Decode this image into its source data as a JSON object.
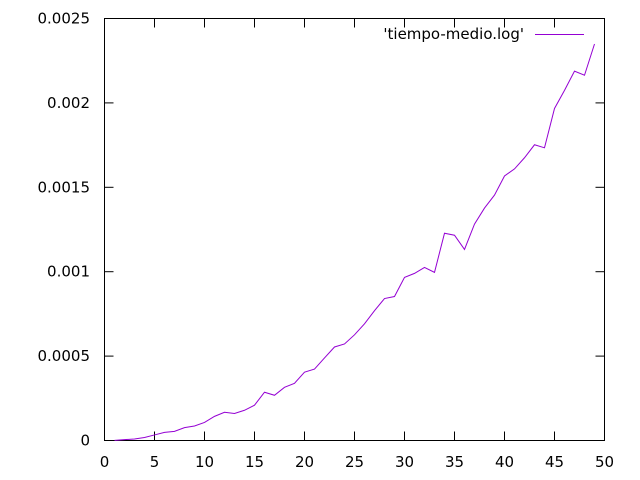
{
  "chart_data": {
    "type": "line",
    "title": "",
    "xlabel": "",
    "ylabel": "",
    "xlim": [
      0,
      50
    ],
    "ylim": [
      0,
      0.0025
    ],
    "x_ticks": [
      0,
      5,
      10,
      15,
      20,
      25,
      30,
      35,
      40,
      45,
      50
    ],
    "x_tick_labels": [
      "0",
      "5",
      "10",
      "15",
      "20",
      "25",
      "30",
      "35",
      "40",
      "45",
      "50"
    ],
    "y_ticks": [
      0,
      0.0005,
      0.001,
      0.0015,
      0.002,
      0.0025
    ],
    "y_tick_labels": [
      "0",
      "0.0005",
      "0.001",
      "0.0015",
      "0.002",
      "0.0025"
    ],
    "grid": false,
    "legend_position": "top-right",
    "series": [
      {
        "name": "'tiempo-medio.log'",
        "color": "#9400d3",
        "x": [
          1,
          2,
          3,
          4,
          5,
          6,
          7,
          8,
          9,
          10,
          11,
          12,
          13,
          14,
          15,
          16,
          17,
          18,
          19,
          20,
          21,
          22,
          23,
          24,
          25,
          26,
          27,
          28,
          29,
          30,
          31,
          32,
          33,
          34,
          35,
          36,
          37,
          38,
          39,
          40,
          41,
          42,
          43,
          44,
          45,
          46,
          47,
          48,
          49
        ],
        "y": [
          1e-06,
          5e-06,
          9e-06,
          1.8e-05,
          3.3e-05,
          4.8e-05,
          5.4e-05,
          7.6e-05,
          8.6e-05,
          0.000107,
          0.000143,
          0.000167,
          0.00016,
          0.000179,
          0.000209,
          0.000286,
          0.000268,
          0.000315,
          0.000339,
          0.000405,
          0.000423,
          0.000489,
          0.000554,
          0.000572,
          0.000626,
          0.000691,
          0.000769,
          0.000841,
          0.000853,
          0.000966,
          0.00099,
          0.001025,
          0.000996,
          0.001228,
          0.001216,
          0.001132,
          0.001282,
          0.001377,
          0.001454,
          0.001567,
          0.001609,
          0.001675,
          0.001752,
          0.001734,
          0.001967,
          0.002074,
          0.002188,
          0.002164,
          0.002349
        ]
      }
    ]
  }
}
